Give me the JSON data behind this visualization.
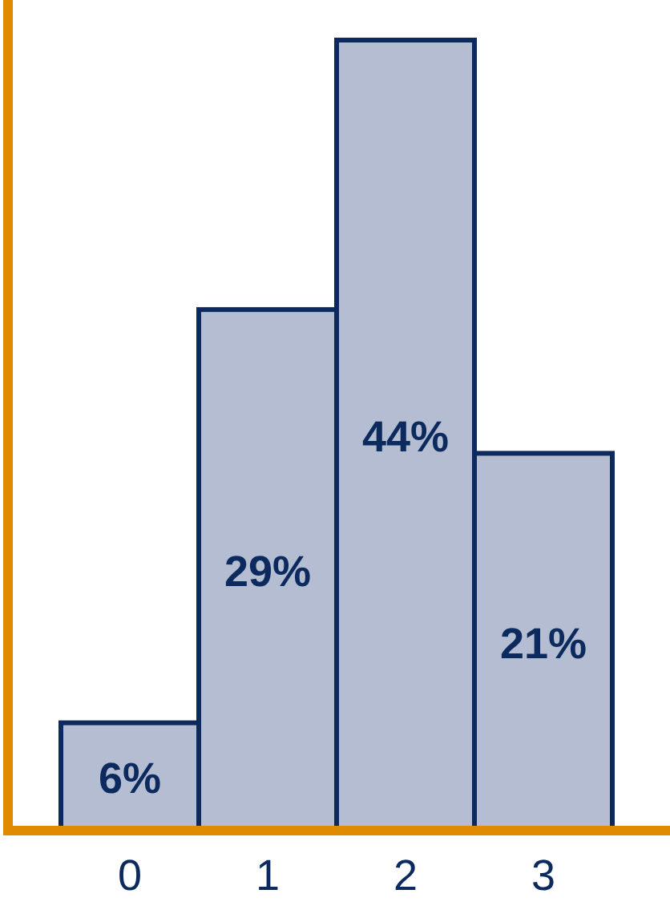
{
  "chart_data": {
    "type": "bar",
    "categories": [
      "0",
      "1",
      "2",
      "3"
    ],
    "values": [
      6,
      29,
      44,
      21
    ],
    "value_labels": [
      "6%",
      "29%",
      "44%",
      "21%"
    ],
    "color": "#b4bdd1"
  }
}
